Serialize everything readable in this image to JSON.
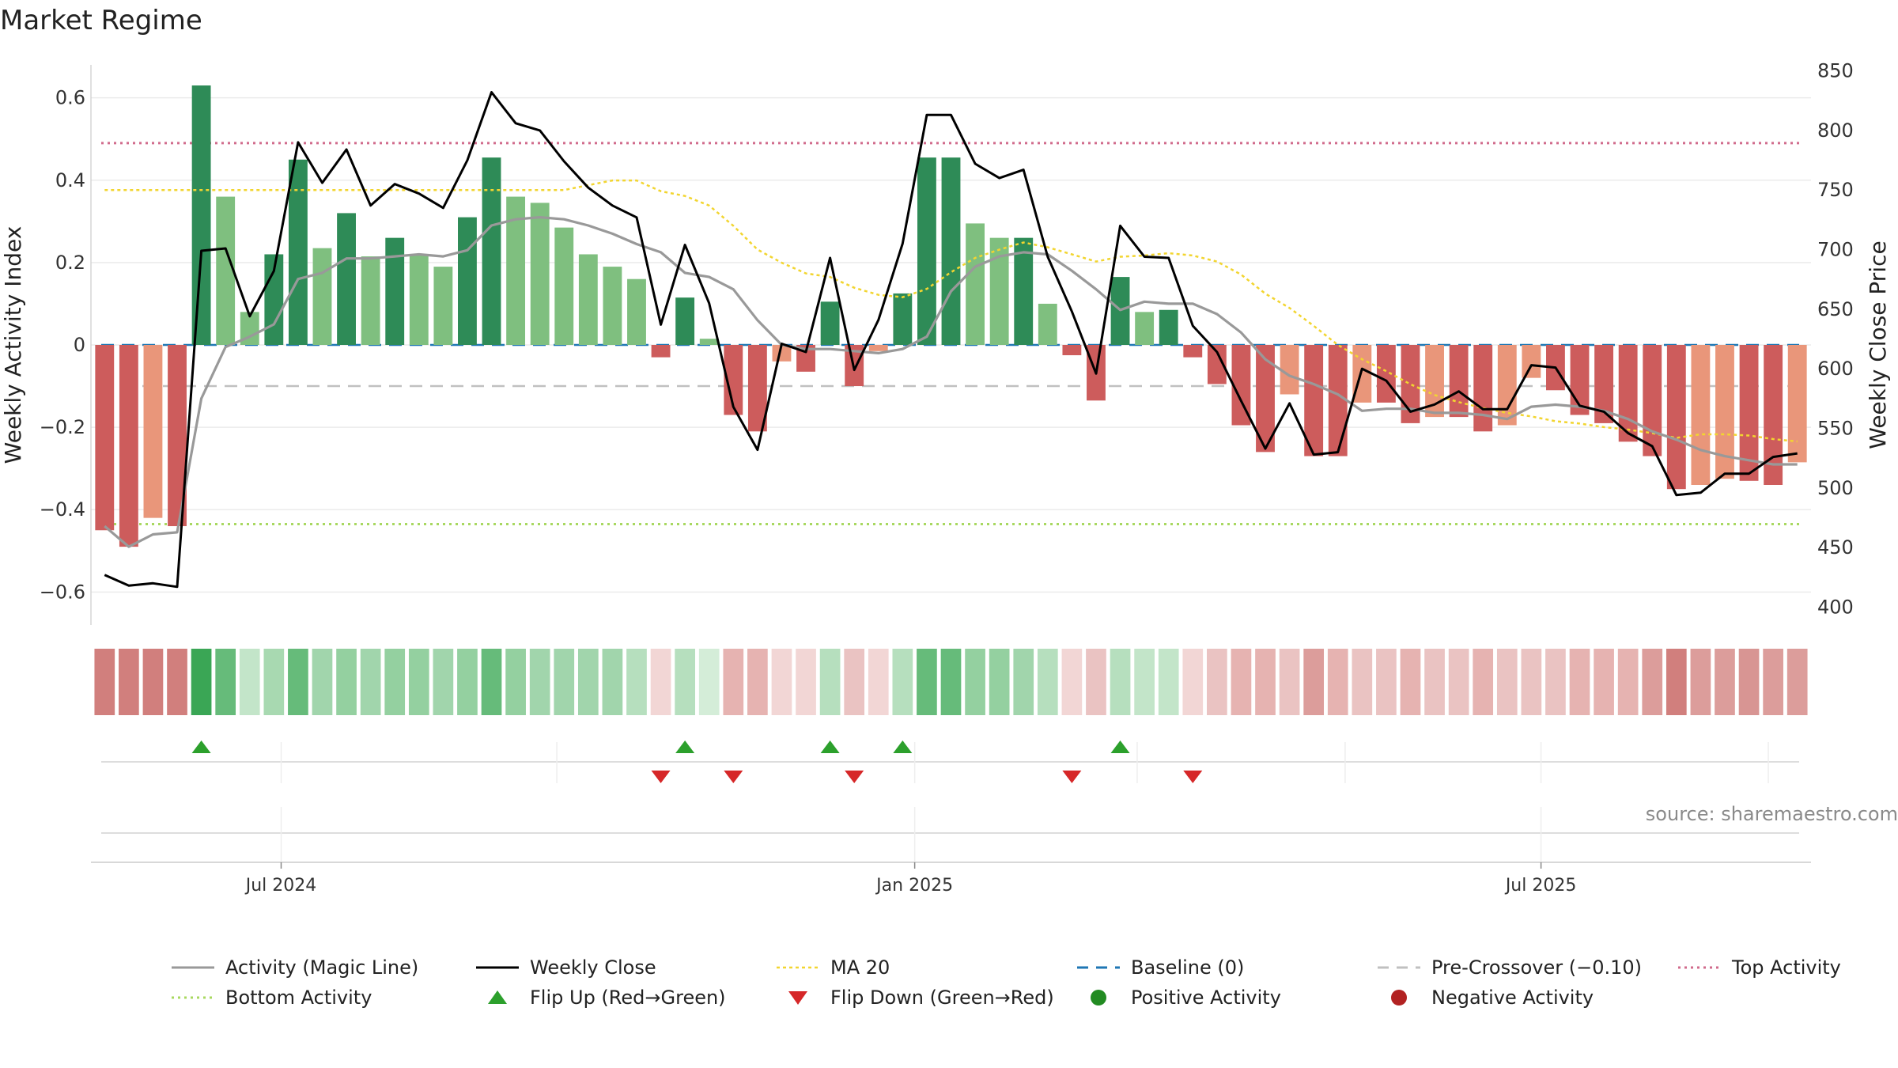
{
  "chart_data": {
    "type": "bar",
    "title": "Market Regime",
    "source_label": "source: sharemaestro.com",
    "ylabel": "Weekly Activity Index",
    "y2label": "Weekly Close Price",
    "ylim": [
      -0.68,
      0.68
    ],
    "y2lim": [
      385,
      855
    ],
    "yticks": [
      {
        "v": 0.6,
        "label": "0.6"
      },
      {
        "v": 0.4,
        "label": "0.4"
      },
      {
        "v": 0.2,
        "label": "0.2"
      },
      {
        "v": 0,
        "label": "0"
      },
      {
        "v": -0.2,
        "label": "−0.2"
      },
      {
        "v": -0.4,
        "label": "−0.4"
      },
      {
        "v": -0.6,
        "label": "−0.6"
      }
    ],
    "y2ticks": [
      {
        "v": 850,
        "label": "850"
      },
      {
        "v": 800,
        "label": "800"
      },
      {
        "v": 750,
        "label": "750"
      },
      {
        "v": 700,
        "label": "700"
      },
      {
        "v": 650,
        "label": "650"
      },
      {
        "v": 600,
        "label": "600"
      },
      {
        "v": 550,
        "label": "550"
      },
      {
        "v": 500,
        "label": "500"
      },
      {
        "v": 450,
        "label": "450"
      },
      {
        "v": 400,
        "label": "400"
      }
    ],
    "xticks": [
      {
        "week": 7.3,
        "label": "Jul 2024"
      },
      {
        "week": 33.5,
        "label": "Jan 2025"
      },
      {
        "week": 59.4,
        "label": "Jul 2025"
      }
    ],
    "grid": true,
    "legend_position": "bottom",
    "levels": {
      "top": 0.49,
      "bottom": -0.435,
      "baseline": 0,
      "pre_crossover": -0.1
    },
    "activity": [
      -0.45,
      -0.49,
      -0.42,
      -0.44,
      0.63,
      0.36,
      0.08,
      0.22,
      0.45,
      0.235,
      0.32,
      0.215,
      0.26,
      0.22,
      0.19,
      0.31,
      0.455,
      0.36,
      0.345,
      0.285,
      0.22,
      0.19,
      0.16,
      -0.03,
      0.115,
      0.015,
      -0.17,
      -0.21,
      -0.04,
      -0.065,
      0.105,
      -0.1,
      -0.015,
      0.125,
      0.455,
      0.455,
      0.295,
      0.26,
      0.26,
      0.1,
      -0.025,
      -0.135,
      0.165,
      0.08,
      0.085,
      -0.03,
      -0.095,
      -0.195,
      -0.26,
      -0.12,
      -0.27,
      -0.27,
      -0.14,
      -0.14,
      -0.19,
      -0.175,
      -0.175,
      -0.21,
      -0.195,
      -0.08,
      -0.11,
      -0.17,
      -0.19,
      -0.235,
      -0.27,
      -0.35,
      -0.34,
      -0.325,
      -0.33,
      -0.34,
      -0.285
    ],
    "magic_line": [
      -0.44,
      -0.49,
      -0.46,
      -0.455,
      -0.13,
      -0.005,
      0.02,
      0.05,
      0.16,
      0.175,
      0.21,
      0.21,
      0.215,
      0.22,
      0.215,
      0.23,
      0.29,
      0.305,
      0.31,
      0.305,
      0.29,
      0.27,
      0.245,
      0.225,
      0.175,
      0.165,
      0.135,
      0.06,
      0,
      -0.01,
      -0.01,
      -0.015,
      -0.02,
      -0.01,
      0.02,
      0.13,
      0.19,
      0.215,
      0.225,
      0.22,
      0.18,
      0.135,
      0.085,
      0.105,
      0.1,
      0.1,
      0.075,
      0.03,
      -0.035,
      -0.075,
      -0.095,
      -0.12,
      -0.16,
      -0.155,
      -0.155,
      -0.165,
      -0.165,
      -0.17,
      -0.18,
      -0.15,
      -0.145,
      -0.15,
      -0.16,
      -0.18,
      -0.21,
      -0.23,
      -0.255,
      -0.27,
      -0.28,
      -0.29,
      -0.29
    ],
    "weekly_close": [
      427,
      418,
      420,
      417,
      699,
      701,
      644,
      682,
      790,
      756,
      784,
      737,
      755,
      747,
      735,
      775,
      832,
      806,
      800,
      774,
      752,
      737,
      727,
      637,
      704,
      655,
      568,
      532,
      621,
      614,
      693,
      599,
      641,
      705,
      813,
      813,
      772,
      760,
      767,
      694,
      648,
      596,
      720,
      694,
      693,
      636,
      614,
      573,
      533,
      571,
      528,
      530,
      600,
      590,
      564,
      570,
      581,
      566,
      566,
      603,
      601,
      569,
      564,
      546,
      535,
      494,
      496,
      512,
      512,
      526,
      529
    ],
    "ma20": [
      750,
      750,
      750,
      750,
      750,
      750,
      750,
      750,
      750,
      750,
      750,
      750,
      750,
      750,
      750,
      750,
      750,
      750,
      750,
      750,
      754,
      758,
      758,
      749,
      745,
      737,
      720,
      700,
      689,
      680,
      677,
      668,
      662,
      660,
      667,
      681,
      693,
      700,
      706,
      702,
      696,
      690,
      694,
      695,
      697,
      695,
      690,
      679,
      663,
      651,
      636,
      620,
      608,
      598,
      587,
      578,
      572,
      567,
      563,
      560,
      556,
      554,
      551,
      549,
      546,
      542,
      545,
      545,
      544,
      541,
      539
    ],
    "regime_colors": [
      "#d17f7d",
      "#d17f7d",
      "#d17f7d",
      "#d17f7d",
      "#3aa655",
      "#66bb7a",
      "#c3e5c9",
      "#a8d9b1",
      "#66bb7a",
      "#a1d5ac",
      "#94d0a0",
      "#a1d5ac",
      "#94d0a0",
      "#94d0a0",
      "#a1d5ac",
      "#94d0a0",
      "#66bb7a",
      "#94d0a0",
      "#a1d5ac",
      "#a1d5ac",
      "#a1d5ac",
      "#a1d5ac",
      "#b6dfbe",
      "#f2d6d5",
      "#b6dfbe",
      "#d4edd8",
      "#e6b3b1",
      "#e6b3b1",
      "#f2d6d5",
      "#f2d6d5",
      "#b6dfbe",
      "#eac3c2",
      "#f2d6d5",
      "#b6dfbe",
      "#66bb7a",
      "#66bb7a",
      "#94d0a0",
      "#94d0a0",
      "#a1d5ac",
      "#b6dfbe",
      "#f2d6d5",
      "#eac3c2",
      "#b6dfbe",
      "#c3e5c9",
      "#c3e5c9",
      "#f2d6d5",
      "#eac3c2",
      "#e6b3b1",
      "#e6b3b1",
      "#eac3c2",
      "#dc9d9b",
      "#e6b3b1",
      "#eac3c2",
      "#eac3c2",
      "#e6b3b1",
      "#eac3c2",
      "#eac3c2",
      "#e6b3b1",
      "#eac3c2",
      "#eac3c2",
      "#eac3c2",
      "#e6b3b1",
      "#e6b3b1",
      "#e6b3b1",
      "#dc9d9b",
      "#d17f7d",
      "#dc9d9b",
      "#dc9d9b",
      "#d89593",
      "#dc9d9b",
      "#dc9d9b"
    ],
    "flip_up_weeks": [
      4,
      24,
      30,
      33,
      42
    ],
    "flip_down_weeks": [
      23,
      26,
      31,
      40,
      45
    ],
    "colors": {
      "bar_pos_strong": "#2e8b57",
      "bar_pos_light": "#7fbf7f",
      "bar_neg_strong": "#cd5c5c",
      "bar_neg_light": "#e9967a",
      "weekly_close": "#000000",
      "magic_line": "#999999",
      "ma20": "#f2d530",
      "baseline": "#1f77b4",
      "pre_crossover": "#c0c0c0",
      "top_level": "#d16b8c",
      "bottom_level": "#a8d860",
      "flip_up": "#2ca02c",
      "flip_down": "#d62728",
      "positive_dot": "#228b22",
      "negative_dot": "#b22222"
    },
    "legend": [
      {
        "label": "Activity (Magic Line)",
        "marker": "line-gray"
      },
      {
        "label": "Weekly Close",
        "marker": "line-black"
      },
      {
        "label": "MA 20",
        "marker": "dotted-yellow"
      },
      {
        "label": "Baseline (0)",
        "marker": "dashed-blue"
      },
      {
        "label": "Pre-Crossover (−0.10)",
        "marker": "dashed-gray"
      },
      {
        "label": "Top Activity",
        "marker": "dotted-pink"
      },
      {
        "label": "Bottom Activity",
        "marker": "dotted-green"
      },
      {
        "label": "Flip Up (Red→Green)",
        "marker": "triangle-up-green"
      },
      {
        "label": "Flip Down (Green→Red)",
        "marker": "triangle-down-red"
      },
      {
        "label": "Positive Activity",
        "marker": "dot-green"
      },
      {
        "label": "Negative Activity",
        "marker": "dot-red"
      }
    ]
  }
}
